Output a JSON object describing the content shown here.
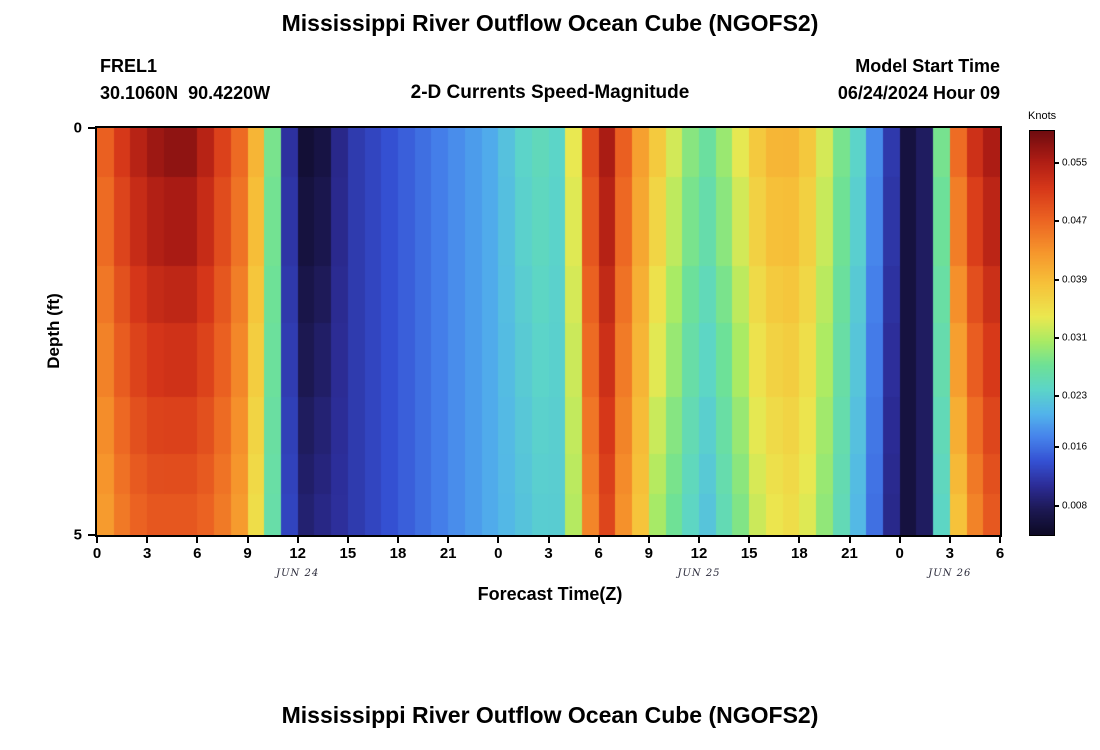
{
  "figure": {
    "background": "#ffffff"
  },
  "chart_data": {
    "type": "heatmap",
    "title": "Mississippi River Outflow Ocean Cube (NGOFS2)",
    "subtitle": "2-D Currents Speed-Magnitude",
    "annotations": {
      "station_id": "FREL1",
      "station_coords": "30.1060N  90.4220W",
      "model_start_label": "Model Start Time",
      "model_start_value": "06/24/2024 Hour 09"
    },
    "xlabel": "Forecast Time(Z)",
    "ylabel": "Depth (ft)",
    "x_hours_range": [
      0,
      54
    ],
    "x_ticks": [
      {
        "hour": 0,
        "label": "0"
      },
      {
        "hour": 3,
        "label": "3"
      },
      {
        "hour": 6,
        "label": "6"
      },
      {
        "hour": 9,
        "label": "9"
      },
      {
        "hour": 12,
        "label": "12"
      },
      {
        "hour": 15,
        "label": "15"
      },
      {
        "hour": 18,
        "label": "18"
      },
      {
        "hour": 21,
        "label": "21"
      },
      {
        "hour": 24,
        "label": "0"
      },
      {
        "hour": 27,
        "label": "3"
      },
      {
        "hour": 30,
        "label": "6"
      },
      {
        "hour": 33,
        "label": "9"
      },
      {
        "hour": 36,
        "label": "12"
      },
      {
        "hour": 39,
        "label": "15"
      },
      {
        "hour": 42,
        "label": "18"
      },
      {
        "hour": 45,
        "label": "21"
      },
      {
        "hour": 48,
        "label": "0"
      },
      {
        "hour": 51,
        "label": "3"
      },
      {
        "hour": 54,
        "label": "6"
      }
    ],
    "x_date_labels": [
      {
        "hour": 12,
        "label": "JUN 24"
      },
      {
        "hour": 36,
        "label": "JUN 25"
      },
      {
        "hour": 51,
        "label": "JUN 26"
      }
    ],
    "y_ticks": [
      {
        "depth": 0,
        "label": "0"
      },
      {
        "depth": 5,
        "label": "5"
      }
    ],
    "depth_range_ft": [
      0,
      5
    ],
    "depth_boundaries_ft": [
      0,
      0.6,
      1.7,
      2.4,
      3.3,
      4.0,
      4.5,
      5.0
    ],
    "surface_values_knots": [
      0.048,
      0.052,
      0.055,
      0.057,
      0.058,
      0.058,
      0.055,
      0.051,
      0.047,
      0.04,
      0.028,
      0.011,
      0.005,
      0.006,
      0.01,
      0.012,
      0.013,
      0.014,
      0.015,
      0.016,
      0.017,
      0.018,
      0.019,
      0.02,
      0.022,
      0.024,
      0.025,
      0.024,
      0.034,
      0.05,
      0.056,
      0.048,
      0.042,
      0.038,
      0.033,
      0.029,
      0.027,
      0.03,
      0.034,
      0.038,
      0.04,
      0.04,
      0.038,
      0.033,
      0.028,
      0.024,
      0.018,
      0.012,
      0.006,
      0.008,
      0.028,
      0.047,
      0.053,
      0.056
    ],
    "bottom_values_knots": [
      0.042,
      0.045,
      0.047,
      0.048,
      0.048,
      0.048,
      0.047,
      0.045,
      0.042,
      0.035,
      0.026,
      0.013,
      0.009,
      0.01,
      0.011,
      0.012,
      0.013,
      0.014,
      0.015,
      0.016,
      0.017,
      0.018,
      0.019,
      0.02,
      0.021,
      0.022,
      0.023,
      0.023,
      0.031,
      0.044,
      0.05,
      0.043,
      0.038,
      0.03,
      0.027,
      0.024,
      0.022,
      0.025,
      0.028,
      0.032,
      0.034,
      0.035,
      0.033,
      0.029,
      0.025,
      0.021,
      0.016,
      0.01,
      0.006,
      0.008,
      0.024,
      0.038,
      0.044,
      0.048
    ],
    "colorbar": {
      "title": "Knots",
      "min": 0.004,
      "max": 0.0594,
      "tick_values": [
        0.055,
        0.047,
        0.039,
        0.031,
        0.023,
        0.016,
        0.008
      ],
      "tick_labels": [
        "0.055",
        "0.047",
        "0.039",
        "0.031",
        "0.023",
        "0.016",
        "0.008"
      ]
    },
    "colormap_stops": [
      [
        0.0,
        [
          13,
          10,
          38
        ]
      ],
      [
        0.06,
        [
          28,
          24,
          82
        ]
      ],
      [
        0.12,
        [
          44,
          44,
          150
        ]
      ],
      [
        0.18,
        [
          52,
          80,
          210
        ]
      ],
      [
        0.24,
        [
          70,
          130,
          235
        ]
      ],
      [
        0.3,
        [
          82,
          180,
          235
        ]
      ],
      [
        0.36,
        [
          92,
          213,
          200
        ]
      ],
      [
        0.42,
        [
          110,
          225,
          150
        ]
      ],
      [
        0.48,
        [
          170,
          235,
          100
        ]
      ],
      [
        0.54,
        [
          235,
          232,
          80
        ]
      ],
      [
        0.62,
        [
          246,
          195,
          58
        ]
      ],
      [
        0.7,
        [
          246,
          150,
          44
        ]
      ],
      [
        0.78,
        [
          236,
          100,
          34
        ]
      ],
      [
        0.86,
        [
          214,
          55,
          25
        ]
      ],
      [
        0.93,
        [
          172,
          28,
          20
        ]
      ],
      [
        1.0,
        [
          112,
          12,
          15
        ]
      ]
    ],
    "grid": false,
    "legend_position": "right-colorbar"
  },
  "footer": {
    "next_panel_title": "Mississippi River Outflow Ocean Cube (NGOFS2)"
  }
}
